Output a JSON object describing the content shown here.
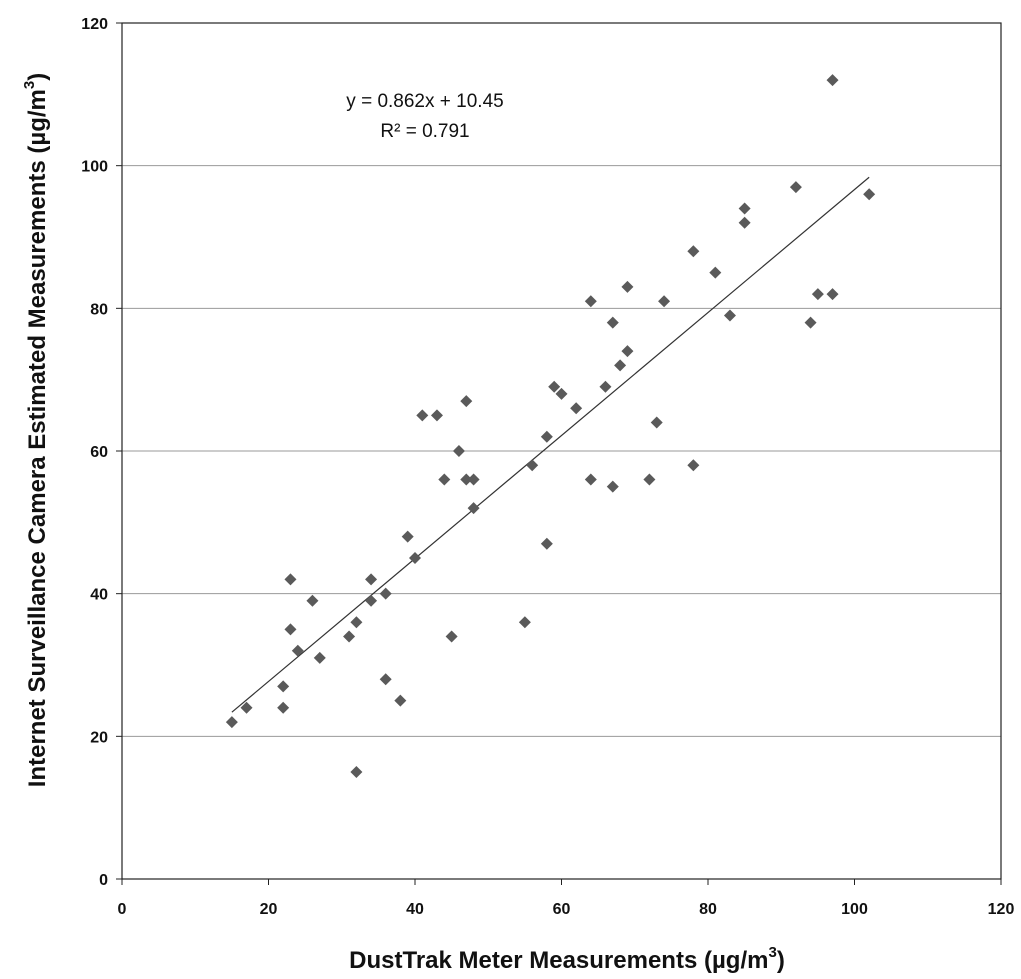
{
  "chart_data": {
    "type": "scatter",
    "xlabel": "DustTrak Meter Measurements (µg/m",
    "xlabel_sup": "3",
    "xlabel_end": ")",
    "ylabel": "Internet Surveillance Camera Estimated Measurements (µg/m",
    "ylabel_sup": "3",
    "ylabel_end": ")",
    "xlim": [
      0,
      120
    ],
    "ylim": [
      0,
      120
    ],
    "x_ticks": [
      "0",
      "20",
      "40",
      "60",
      "80",
      "100",
      "120"
    ],
    "y_ticks": [
      "0",
      "20",
      "40",
      "60",
      "80",
      "100",
      "120"
    ],
    "grid": "horizontal",
    "marker_color": "#5a5a5a",
    "trendline": {
      "slope": 0.862,
      "intercept": 10.45,
      "x_range": [
        15,
        102
      ]
    },
    "annotation": {
      "equation": "y = 0.862x + 10.45",
      "r2": "R² = 0.791"
    },
    "points": [
      [
        15,
        22
      ],
      [
        17,
        24
      ],
      [
        22,
        24
      ],
      [
        22,
        27
      ],
      [
        23,
        35
      ],
      [
        23,
        42
      ],
      [
        24,
        32
      ],
      [
        26,
        39
      ],
      [
        27,
        31
      ],
      [
        31,
        34
      ],
      [
        32,
        15
      ],
      [
        32,
        36
      ],
      [
        34,
        39
      ],
      [
        34,
        42
      ],
      [
        36,
        28
      ],
      [
        36,
        40
      ],
      [
        38,
        25
      ],
      [
        39,
        48
      ],
      [
        40,
        45
      ],
      [
        41,
        65
      ],
      [
        43,
        65
      ],
      [
        44,
        56
      ],
      [
        45,
        34
      ],
      [
        46,
        60
      ],
      [
        47,
        56
      ],
      [
        47,
        67
      ],
      [
        48,
        56
      ],
      [
        48,
        52
      ],
      [
        55,
        36
      ],
      [
        56,
        58
      ],
      [
        58,
        47
      ],
      [
        58,
        62
      ],
      [
        59,
        69
      ],
      [
        60,
        68
      ],
      [
        62,
        66
      ],
      [
        64,
        56
      ],
      [
        64,
        81
      ],
      [
        66,
        69
      ],
      [
        67,
        55
      ],
      [
        67,
        78
      ],
      [
        68,
        72
      ],
      [
        69,
        74
      ],
      [
        69,
        83
      ],
      [
        72,
        56
      ],
      [
        73,
        64
      ],
      [
        74,
        81
      ],
      [
        78,
        58
      ],
      [
        78,
        88
      ],
      [
        81,
        85
      ],
      [
        83,
        79
      ],
      [
        85,
        92
      ],
      [
        85,
        94
      ],
      [
        92,
        97
      ],
      [
        94,
        78
      ],
      [
        95,
        82
      ],
      [
        97,
        82
      ],
      [
        97,
        112
      ],
      [
        102,
        96
      ]
    ]
  }
}
